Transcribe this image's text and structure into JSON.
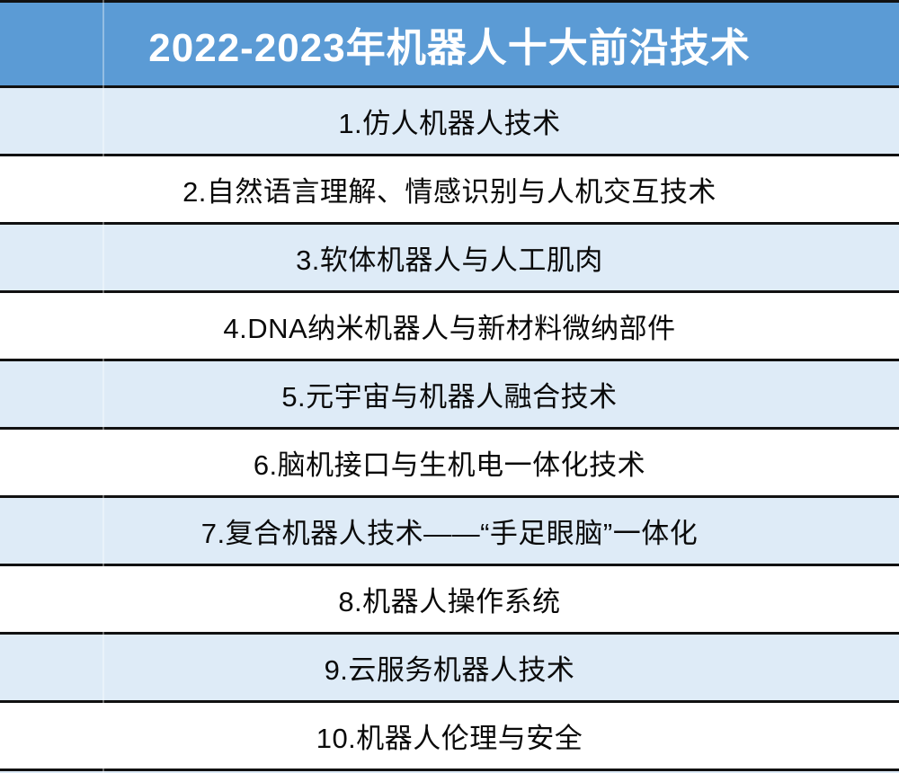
{
  "header": {
    "title": "2022-2023年机器人十大前沿技术"
  },
  "rows": [
    "1.仿人机器人技术",
    "2.自然语言理解、情感识别与人机交互技术",
    "3.软体机器人与人工肌肉",
    "4.DNA纳米机器人与新材料微纳部件",
    "5.元宇宙与机器人融合技术",
    "6.脑机接口与生机电一体化技术",
    "7.复合机器人技术——“手足眼脑”一体化",
    "8.机器人操作系统",
    "9.云服务机器人技术",
    "10.机器人伦理与安全"
  ],
  "colors": {
    "header_bg": "#5B9BD5",
    "title_color": "#FFFFFF",
    "row_alt_bg": "#DEEBF7",
    "row_bg": "#FFFFFF",
    "text_color": "#0A0A0A",
    "border_color": "#111111",
    "strip_bg": "#DCE9F6"
  }
}
